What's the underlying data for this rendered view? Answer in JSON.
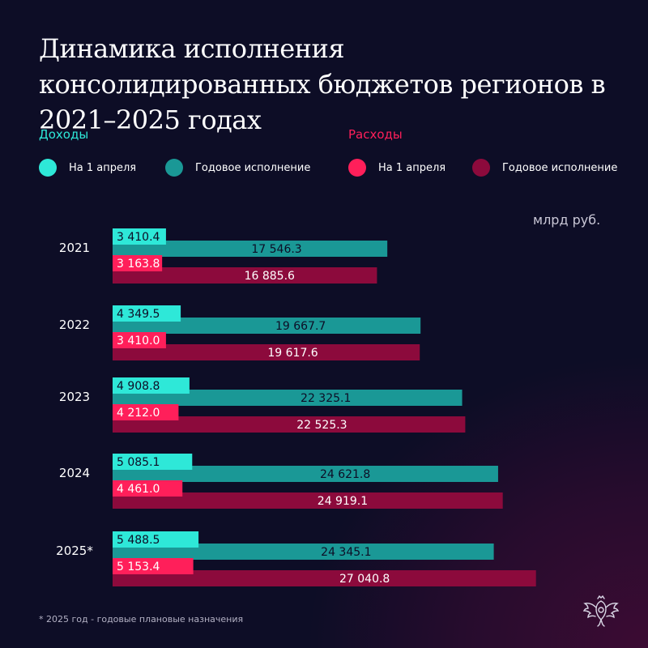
{
  "title": "Динамика исполнения консолидированных бюджетов регионов в 2021–2025 годах",
  "legend": {
    "income_title": "Доходы",
    "expense_title": "Расходы",
    "items": [
      {
        "label": "На 1 апреля",
        "color": "#2ee8d8"
      },
      {
        "label": "Годовое исполнение",
        "color": "#1a9896"
      },
      {
        "label": "На 1 апреля",
        "color": "#ff1f5a"
      },
      {
        "label": "Годовое исполнение",
        "color": "#8c0a3c"
      }
    ]
  },
  "unit": "млрд руб.",
  "footnote": "* 2025 год - годовые плановые назначения",
  "chart_data": {
    "type": "bar",
    "orientation": "horizontal",
    "categories": [
      "2021",
      "2022",
      "2023",
      "2024",
      "2025*"
    ],
    "series": [
      {
        "name": "На 1 апреля",
        "group": "Доходы",
        "color": "#2ee8d8",
        "labels": [
          "3 410.4",
          "4 349.5",
          "4 908.8",
          "5 085.1",
          "5 488.5"
        ],
        "values": [
          3410.4,
          4349.5,
          4908.8,
          5085.1,
          5488.5
        ]
      },
      {
        "name": "Годовое исполнение",
        "group": "Доходы",
        "color": "#1a9896",
        "labels": [
          "17 546.3",
          "19 667.7",
          "22 325.1",
          "24 621.8",
          "24 345.1"
        ],
        "values": [
          17546.3,
          19667.7,
          22325.1,
          24621.8,
          24345.1
        ]
      },
      {
        "name": "На 1 апреля",
        "group": "Расходы",
        "color": "#ff1f5a",
        "labels": [
          "3 163.8",
          "3 410.0",
          "4 212.0",
          "4 461.0",
          "5 153.4"
        ],
        "values": [
          3163.8,
          3410.0,
          4212.0,
          4461.0,
          5153.4
        ]
      },
      {
        "name": "Годовое исполнение",
        "group": "Расходы",
        "color": "#8c0a3c",
        "labels": [
          "16 885.6",
          "19 617.6",
          "22 525.3",
          "24 919.1",
          "27 040.8"
        ],
        "values": [
          16885.6,
          19617.6,
          22525.3,
          24919.1,
          27040.8
        ]
      }
    ],
    "ylabel": "млрд руб.",
    "grid": false,
    "legend_position": "top"
  }
}
